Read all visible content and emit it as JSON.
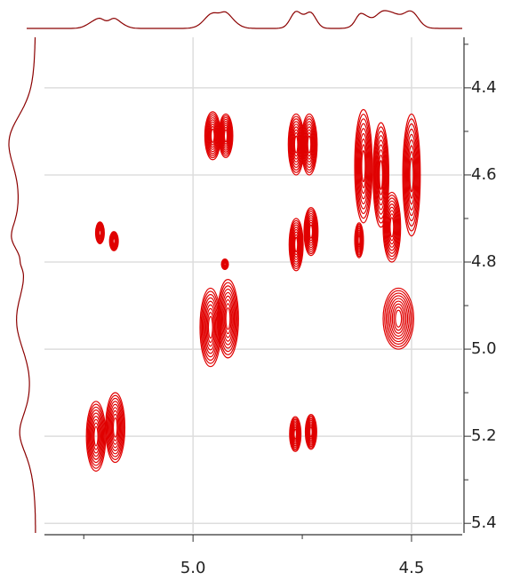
{
  "chart_data": {
    "type": "contour",
    "xlim": [
      5.34,
      4.384
    ],
    "ylim": [
      4.284,
      5.422
    ],
    "xticks": [
      {
        "value": 5,
        "label": "5.0"
      },
      {
        "value": 4.5,
        "label": "4.5"
      }
    ],
    "xminor_ticks": [
      5.25,
      4.75
    ],
    "yticks": [
      4.4,
      4.6,
      4.8,
      {
        "value": 5,
        "label": "5.0"
      },
      5.2,
      5.4
    ],
    "yminor_ticks": [
      4.3,
      4.5,
      4.7,
      4.9,
      5.1,
      5.3
    ],
    "grid": true,
    "color": "#e00000",
    "projection_color": "#8b0000",
    "peaks": [
      {
        "x": 5.213,
        "y": 4.733,
        "rx": 0.01,
        "ry": 0.025
      },
      {
        "x": 5.181,
        "y": 4.752,
        "rx": 0.01,
        "ry": 0.022
      },
      {
        "x": 5.222,
        "y": 5.2,
        "rx": 0.022,
        "ry": 0.08
      },
      {
        "x": 5.178,
        "y": 5.18,
        "rx": 0.022,
        "ry": 0.08
      },
      {
        "x": 4.955,
        "y": 4.51,
        "rx": 0.018,
        "ry": 0.055
      },
      {
        "x": 4.925,
        "y": 4.51,
        "rx": 0.016,
        "ry": 0.05
      },
      {
        "x": 4.96,
        "y": 4.95,
        "rx": 0.024,
        "ry": 0.09
      },
      {
        "x": 4.92,
        "y": 4.93,
        "rx": 0.024,
        "ry": 0.09
      },
      {
        "x": 4.927,
        "y": 4.805,
        "rx": 0.008,
        "ry": 0.012
      },
      {
        "x": 4.764,
        "y": 4.53,
        "rx": 0.018,
        "ry": 0.07
      },
      {
        "x": 4.734,
        "y": 4.53,
        "rx": 0.018,
        "ry": 0.07
      },
      {
        "x": 4.764,
        "y": 4.76,
        "rx": 0.016,
        "ry": 0.06
      },
      {
        "x": 4.73,
        "y": 4.73,
        "rx": 0.016,
        "ry": 0.055
      },
      {
        "x": 4.766,
        "y": 5.195,
        "rx": 0.013,
        "ry": 0.04
      },
      {
        "x": 4.73,
        "y": 5.19,
        "rx": 0.013,
        "ry": 0.04
      },
      {
        "x": 4.61,
        "y": 4.58,
        "rx": 0.02,
        "ry": 0.13
      },
      {
        "x": 4.57,
        "y": 4.6,
        "rx": 0.018,
        "ry": 0.12
      },
      {
        "x": 4.545,
        "y": 4.72,
        "rx": 0.02,
        "ry": 0.08
      },
      {
        "x": 4.5,
        "y": 4.6,
        "rx": 0.02,
        "ry": 0.14
      },
      {
        "x": 4.62,
        "y": 4.75,
        "rx": 0.01,
        "ry": 0.04
      },
      {
        "x": 4.53,
        "y": 4.93,
        "rx": 0.035,
        "ry": 0.07
      }
    ]
  }
}
